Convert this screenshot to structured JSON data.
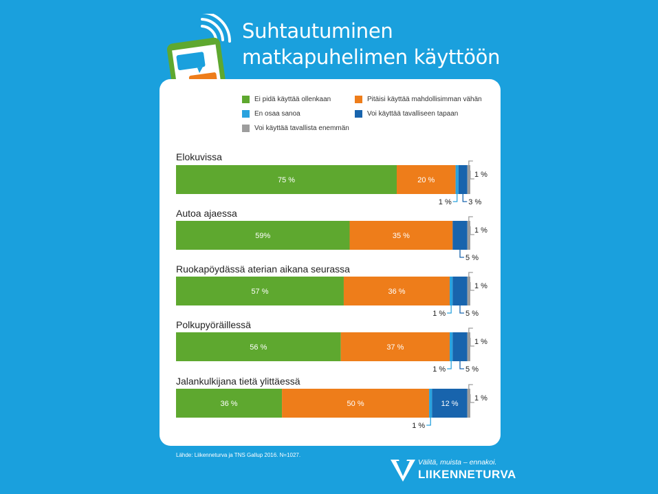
{
  "title_line1": "Suhtautuminen",
  "title_line2": "matkapuhelimen käyttöön",
  "source": "Lähde: Liikenneturva ja TNS Gallup 2016. N=1027.",
  "brand": {
    "tagline": "Välitä, muista – ennakoi.",
    "name": "LIIKENNETURVA"
  },
  "colors": {
    "background": "#1aa0dd",
    "green": "#5ea82f",
    "orange": "#ee7d1a",
    "lightblue": "#29a2de",
    "darkblue": "#1864ad",
    "gray": "#9d9d9d",
    "phone_green": "#5ea82f"
  },
  "icons": [
    "phone-icon",
    "signal-waves-icon",
    "liikenneturva-logo-icon"
  ],
  "chart_data": {
    "type": "bar",
    "orientation": "horizontal",
    "stacked": true,
    "normalized": true,
    "xlim": [
      0,
      100
    ],
    "legend": [
      {
        "name": "Ei pidä käyttää ollenkaan",
        "color": "#5ea82f"
      },
      {
        "name": "Pitäisi käyttää mahdollisimman vähän",
        "color": "#ee7d1a"
      },
      {
        "name": "En osaa sanoa",
        "color": "#29a2de"
      },
      {
        "name": "Voi käyttää tavalliseen tapaan",
        "color": "#1864ad"
      },
      {
        "name": "Voi käyttää tavallista enemmän",
        "color": "#9d9d9d"
      }
    ],
    "categories": [
      {
        "label": "Elokuvissa",
        "values": [
          75,
          20,
          1,
          3,
          1
        ],
        "labels": [
          "75 %",
          "20 %",
          "1 %",
          "3 %",
          "1 %"
        ]
      },
      {
        "label": "Autoa ajaessa",
        "values": [
          59,
          35,
          0,
          5,
          1
        ],
        "labels": [
          "59%",
          "35 %",
          "",
          "5 %",
          "1 %"
        ]
      },
      {
        "label": "Ruokapöydässä aterian aikana seurassa",
        "values": [
          57,
          36,
          1,
          5,
          1
        ],
        "labels": [
          "57 %",
          "36 %",
          "1 %",
          "5 %",
          "1 %"
        ]
      },
      {
        "label": "Polkupyöräillessä",
        "values": [
          56,
          37,
          1,
          5,
          1
        ],
        "labels": [
          "56 %",
          "37 %",
          "1 %",
          "5 %",
          "1 %"
        ]
      },
      {
        "label": "Jalankulkijana tietä ylittäessä",
        "values": [
          36,
          50,
          1,
          12,
          1
        ],
        "labels": [
          "36 %",
          "50 %",
          "1 %",
          "12 %",
          "1 %"
        ]
      }
    ]
  }
}
